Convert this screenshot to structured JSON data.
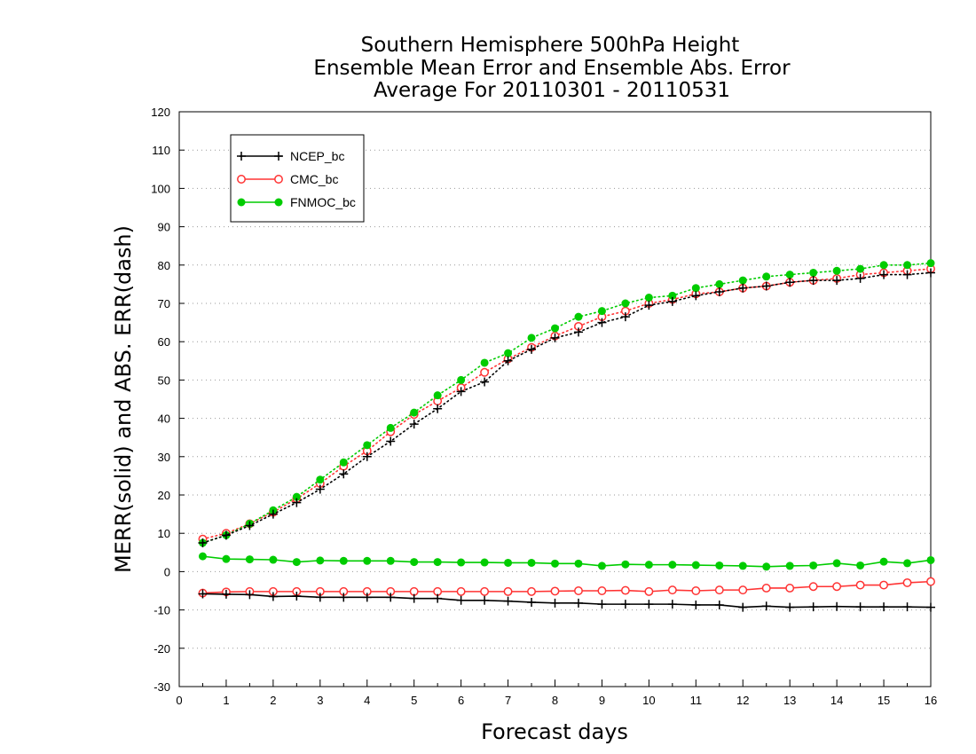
{
  "chart_data": {
    "type": "line",
    "title": [
      "Southern Hemisphere 500hPa Height",
      "Ensemble Mean Error and Ensemble Abs. Error",
      "Average For 20110301 - 20110531"
    ],
    "xlabel": "Forecast days",
    "ylabel": "MERR(solid) and ABS. ERR(dash)",
    "xlim": [
      0,
      16
    ],
    "ylim": [
      -30,
      120
    ],
    "x_ticks": [
      "0",
      "1",
      "2",
      "3",
      "4",
      "5",
      "6",
      "7",
      "8",
      "9",
      "10",
      "11",
      "12",
      "13",
      "14",
      "15",
      "16"
    ],
    "y_ticks": [
      "-30",
      "-20",
      "-10",
      "0",
      "10",
      "20",
      "30",
      "40",
      "50",
      "60",
      "70",
      "80",
      "90",
      "100",
      "110",
      "120"
    ],
    "grid": "horizontal dotted",
    "legend_placement": "top-left",
    "x": [
      0.5,
      1,
      1.5,
      2,
      2.5,
      3,
      3.5,
      4,
      4.5,
      5,
      5.5,
      6,
      6.5,
      7,
      7.5,
      8,
      8.5,
      9,
      9.5,
      10,
      10.5,
      11,
      11.5,
      12,
      12.5,
      13,
      13.5,
      14,
      14.5,
      15,
      15.5,
      16
    ],
    "series": [
      {
        "name": "NCEP_bc",
        "color": "#000000",
        "marker": "plus",
        "merr": [
          -5.8,
          -5.9,
          -6.0,
          -6.5,
          -6.4,
          -6.7,
          -6.7,
          -6.7,
          -6.7,
          -7.0,
          -7.0,
          -7.5,
          -7.5,
          -7.7,
          -8.0,
          -8.2,
          -8.2,
          -8.5,
          -8.5,
          -8.5,
          -8.5,
          -8.7,
          -8.7,
          -9.3,
          -9.0,
          -9.3,
          -9.2,
          -9.1,
          -9.2,
          -9.2,
          -9.2,
          -9.3
        ],
        "abs_err": [
          7.5,
          9.5,
          12.0,
          15.0,
          18.0,
          21.5,
          25.5,
          30.0,
          34.0,
          38.5,
          42.5,
          47.0,
          49.5,
          55.0,
          58.0,
          61.0,
          62.5,
          65.0,
          66.5,
          69.5,
          70.5,
          72.0,
          73.0,
          74.0,
          74.5,
          75.5,
          76.0,
          76.0,
          76.5,
          77.5,
          77.5,
          78.0
        ]
      },
      {
        "name": "CMC_bc",
        "color": "#ff3333",
        "marker": "open-circle",
        "merr": [
          -5.6,
          -5.3,
          -5.2,
          -5.2,
          -5.2,
          -5.2,
          -5.2,
          -5.2,
          -5.2,
          -5.2,
          -5.2,
          -5.2,
          -5.2,
          -5.2,
          -5.2,
          -5.1,
          -5.0,
          -5.0,
          -4.9,
          -5.2,
          -4.8,
          -5.0,
          -4.8,
          -4.8,
          -4.3,
          -4.3,
          -3.9,
          -3.9,
          -3.5,
          -3.5,
          -2.9,
          -2.6
        ],
        "abs_err": [
          8.5,
          10.0,
          12.5,
          15.5,
          19.0,
          23.0,
          27.5,
          31.5,
          36.5,
          41.0,
          44.5,
          48.0,
          52.0,
          55.5,
          58.5,
          61.5,
          64.0,
          66.5,
          68.0,
          70.0,
          71.0,
          72.5,
          73.0,
          74.0,
          74.5,
          75.5,
          76.0,
          76.5,
          77.5,
          78.0,
          78.5,
          79.0
        ]
      },
      {
        "name": "FNMOC_bc",
        "color": "#00cc00",
        "marker": "filled-circle",
        "merr": [
          4.0,
          3.3,
          3.2,
          3.1,
          2.5,
          2.9,
          2.8,
          2.8,
          2.8,
          2.5,
          2.5,
          2.4,
          2.4,
          2.3,
          2.3,
          2.1,
          2.1,
          1.5,
          1.9,
          1.8,
          1.8,
          1.7,
          1.6,
          1.5,
          1.3,
          1.5,
          1.6,
          2.2,
          1.6,
          2.6,
          2.2,
          3.0
        ],
        "abs_err": [
          7.5,
          9.5,
          12.5,
          16.0,
          19.5,
          24.0,
          28.5,
          33.0,
          37.5,
          41.5,
          46.0,
          50.0,
          54.5,
          57.0,
          61.0,
          63.5,
          66.5,
          68.0,
          70.0,
          71.5,
          72.0,
          74.0,
          75.0,
          76.0,
          77.0,
          77.5,
          78.0,
          78.5,
          79.0,
          80.0,
          80.0,
          80.5
        ]
      }
    ]
  }
}
